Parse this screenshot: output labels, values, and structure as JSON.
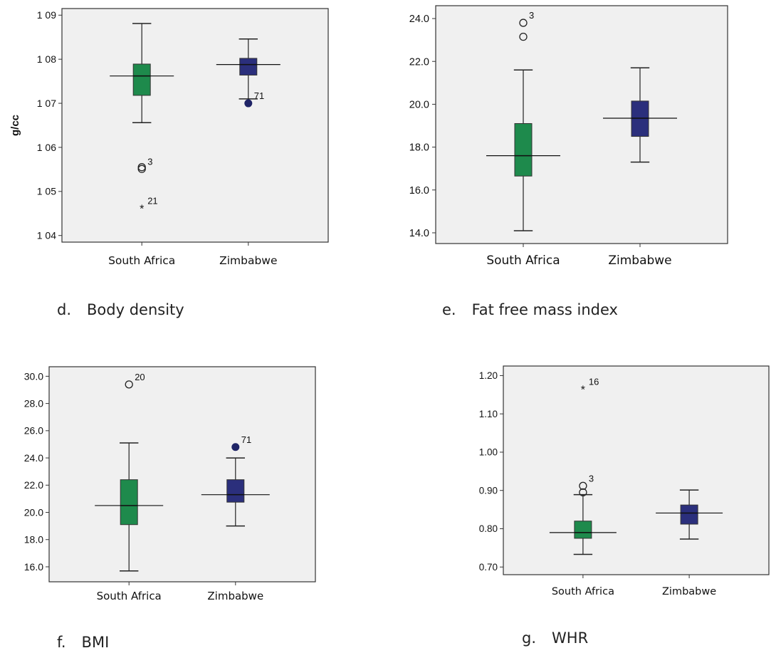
{
  "chart_data": [
    {
      "type": "boxplot",
      "caption_letter": "d.",
      "caption": "Body density",
      "ylabel": "g/cc",
      "categories": [
        "South Africa",
        "Zimbabwe"
      ],
      "ylim": [
        1.0385,
        1.0915
      ],
      "yticks": [
        1.04,
        1.05,
        1.06,
        1.07,
        1.08,
        1.09
      ],
      "ytick_labels": [
        "1 04",
        "1 05",
        "1 06",
        "1 07",
        "1 08",
        "1 09"
      ],
      "reference_lines": [
        1.0762,
        1.0788
      ],
      "groups": [
        {
          "category": "South Africa",
          "color": "#1e8a4c",
          "min": 1.0656,
          "q1": 1.0718,
          "median": 1.0762,
          "q3": 1.0789,
          "max": 1.0881,
          "outliers": [
            {
              "value": 1.0551,
              "symbol": "circle",
              "label": "3"
            },
            {
              "value": 1.0555,
              "symbol": "circle",
              "label": ""
            },
            {
              "value": 1.0462,
              "symbol": "star",
              "label": "21"
            }
          ]
        },
        {
          "category": "Zimbabwe",
          "color": "#2b2f7c",
          "min": 1.071,
          "q1": 1.0764,
          "median": 1.0788,
          "q3": 1.0802,
          "max": 1.0846,
          "outliers": [
            {
              "value": 1.07,
              "symbol": "dot",
              "label": "71"
            }
          ]
        }
      ]
    },
    {
      "type": "boxplot",
      "caption_letter": "e.",
      "caption": "Fat free mass index",
      "ylabel": "",
      "categories": [
        "South Africa",
        "Zimbabwe"
      ],
      "ylim": [
        13.5,
        24.6
      ],
      "yticks": [
        14,
        16,
        18,
        20,
        22,
        24
      ],
      "ytick_labels": [
        "14.0",
        "16.0",
        "18.0",
        "20.0",
        "22.0",
        "24.0"
      ],
      "reference_lines": [
        17.6,
        19.35
      ],
      "groups": [
        {
          "category": "South Africa",
          "color": "#1e8a4c",
          "min": 14.1,
          "q1": 16.65,
          "median": 17.6,
          "q3": 19.1,
          "max": 21.6,
          "outliers": [
            {
              "value": 23.8,
              "symbol": "circle",
              "label": "3"
            },
            {
              "value": 23.15,
              "symbol": "circle",
              "label": ""
            }
          ]
        },
        {
          "category": "Zimbabwe",
          "color": "#2b2f7c",
          "min": 17.3,
          "q1": 18.5,
          "median": 19.35,
          "q3": 20.15,
          "max": 21.7,
          "outliers": []
        }
      ]
    },
    {
      "type": "boxplot",
      "caption_letter": "f.",
      "caption": "BMI",
      "ylabel": "",
      "categories": [
        "South Africa",
        "Zimbabwe"
      ],
      "ylim": [
        14.9,
        30.7
      ],
      "yticks": [
        16,
        18,
        20,
        22,
        24,
        26,
        28,
        30
      ],
      "ytick_labels": [
        "16.0",
        "18.0",
        "20.0",
        "22.0",
        "24.0",
        "26.0",
        "28.0",
        "30.0"
      ],
      "reference_lines": [
        20.5,
        21.3
      ],
      "groups": [
        {
          "category": "South Africa",
          "color": "#1e8a4c",
          "min": 15.7,
          "q1": 19.1,
          "median": 20.5,
          "q3": 22.4,
          "max": 25.1,
          "outliers": [
            {
              "value": 29.4,
              "symbol": "circle",
              "label": "20"
            }
          ]
        },
        {
          "category": "Zimbabwe",
          "color": "#2b2f7c",
          "min": 19.0,
          "q1": 20.75,
          "median": 21.3,
          "q3": 22.4,
          "max": 24.0,
          "outliers": [
            {
              "value": 24.8,
              "symbol": "dot",
              "label": "71"
            }
          ]
        }
      ]
    },
    {
      "type": "boxplot",
      "caption_letter": "g.",
      "caption": "WHR",
      "ylabel": "",
      "categories": [
        "South Africa",
        "Zimbabwe"
      ],
      "ylim": [
        0.68,
        1.225
      ],
      "yticks": [
        0.7,
        0.8,
        0.9,
        1.0,
        1.1,
        1.2
      ],
      "ytick_labels": [
        "0.70",
        "0.80",
        "0.90",
        "1.00",
        "1.10",
        "1.20"
      ],
      "reference_lines": [
        0.79,
        0.841
      ],
      "groups": [
        {
          "category": "South Africa",
          "color": "#1e8a4c",
          "min": 0.733,
          "q1": 0.775,
          "median": 0.79,
          "q3": 0.82,
          "max": 0.889,
          "outliers": [
            {
              "value": 0.912,
              "symbol": "circle",
              "label": "3"
            },
            {
              "value": 0.895,
              "symbol": "circle",
              "label": ""
            },
            {
              "value": 1.165,
              "symbol": "star",
              "label": "16"
            }
          ]
        },
        {
          "category": "Zimbabwe",
          "color": "#2b2f7c",
          "min": 0.773,
          "q1": 0.812,
          "median": 0.841,
          "q3": 0.862,
          "max": 0.901,
          "outliers": []
        }
      ]
    }
  ]
}
